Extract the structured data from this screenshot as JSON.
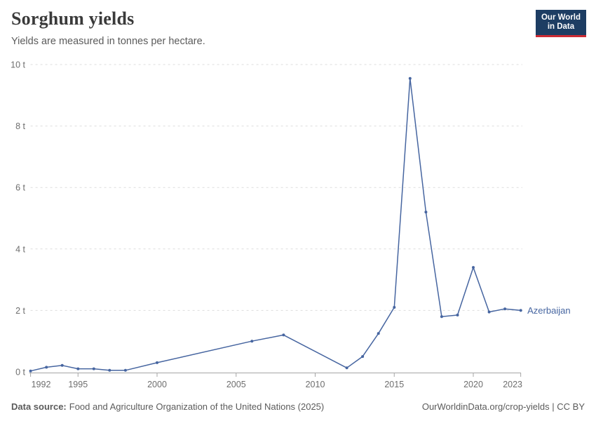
{
  "header": {
    "title": "Sorghum yields",
    "subtitle": "Yields are measured in tonnes per hectare.",
    "logo": {
      "line1": "Our World",
      "line2": "in Data"
    }
  },
  "footer": {
    "source_label": "Data source:",
    "source_text": "Food and Agriculture Organization of the United Nations (2025)",
    "credit": "OurWorldinData.org/crop-yields | CC BY"
  },
  "colors": {
    "series": "#4665a0",
    "grid": "#dddddd",
    "axis": "#a5a5a5",
    "tick_label": "#6e6e6e",
    "logo_navy": "#1d3d63",
    "logo_red": "#cc2b34"
  },
  "chart_data": {
    "type": "line",
    "title": "Sorghum yields",
    "unit": "tonnes per hectare",
    "ylim": [
      0,
      10
    ],
    "yticks": [
      0,
      2,
      4,
      6,
      8,
      10
    ],
    "ytick_suffix": " t",
    "xlim": [
      1992,
      2023
    ],
    "xticks": [
      1992,
      1995,
      2000,
      2005,
      2010,
      2015,
      2020,
      2023
    ],
    "grid": true,
    "legend_position": "end-of-line",
    "series": [
      {
        "name": "Azerbaijan",
        "color": "#4665a0",
        "points": [
          [
            1992,
            0.03
          ],
          [
            1993,
            0.15
          ],
          [
            1994,
            0.21
          ],
          [
            1995,
            0.1
          ],
          [
            1996,
            0.1
          ],
          [
            1997,
            0.05
          ],
          [
            1998,
            0.05
          ],
          [
            2000,
            0.3
          ],
          [
            2006,
            1.0
          ],
          [
            2008,
            1.2
          ],
          [
            2012,
            0.13
          ],
          [
            2013,
            0.5
          ],
          [
            2014,
            1.25
          ],
          [
            2015,
            2.1
          ],
          [
            2016,
            9.55
          ],
          [
            2017,
            5.2
          ],
          [
            2018,
            1.8
          ],
          [
            2019,
            1.85
          ],
          [
            2020,
            3.4
          ],
          [
            2021,
            1.95
          ],
          [
            2022,
            2.05
          ],
          [
            2023,
            2.0
          ]
        ]
      }
    ]
  }
}
